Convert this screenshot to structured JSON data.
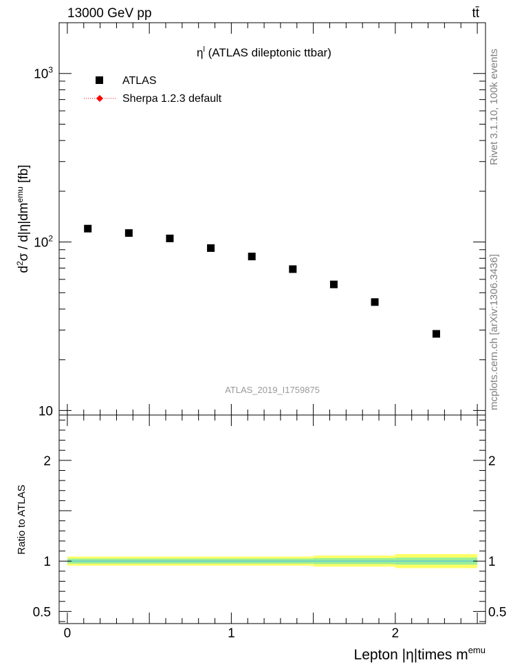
{
  "header": {
    "energy_label": "13000 GeV pp",
    "process_label": "tt̄"
  },
  "side_labels": {
    "rivet": "Rivet 3.1.10, 100k events",
    "mcplots": "mcplots.cern.ch [arXiv:1306.3436]"
  },
  "chart_data": [
    {
      "type": "scatter",
      "title_main": "η",
      "title_sup": "l",
      "title_rest": " (ATLAS dileptonic ttbar)",
      "watermark": "ATLAS_2019_I1759875",
      "ylabel": {
        "pre": "d",
        "sup1": "2",
        "mid": "σ / d|η|dm",
        "sup2": "emu",
        "post": " [fb]"
      },
      "yscale": "log",
      "ylim": [
        9.4,
        2000
      ],
      "xlim": [
        -0.05,
        2.55
      ],
      "y_ticks": [
        {
          "value": 10,
          "label": "10",
          "sup": ""
        },
        {
          "value": 100,
          "label": "10",
          "sup": "2"
        },
        {
          "value": 1000,
          "label": "10",
          "sup": "3"
        }
      ],
      "legend": [
        {
          "name": "ATLAS",
          "marker": "square",
          "color": "#000000"
        },
        {
          "name": "Sherpa 1.2.3 default",
          "marker": "diamond",
          "color": "#ff0000"
        }
      ],
      "series": [
        {
          "name": "ATLAS",
          "x": [
            0.125,
            0.375,
            0.625,
            0.875,
            1.125,
            1.375,
            1.625,
            1.875,
            2.25
          ],
          "y": [
            120,
            113,
            105,
            92,
            82,
            69,
            56,
            44,
            28.5
          ]
        }
      ]
    },
    {
      "type": "line",
      "ylabel": "Ratio to ATLAS",
      "xlabel": {
        "pre": "Lepton |η|times m",
        "sup": "emu"
      },
      "xlim": [
        -0.05,
        2.55
      ],
      "ylim": [
        0.38,
        2.45
      ],
      "x_ticks": [
        {
          "value": 0,
          "label": "0"
        },
        {
          "value": 1,
          "label": "1"
        },
        {
          "value": 2,
          "label": "2"
        }
      ],
      "y_ticks": [
        {
          "value": 0.5,
          "label": "0.5"
        },
        {
          "value": 1,
          "label": "1"
        },
        {
          "value": 2,
          "label": "2"
        }
      ],
      "bands": [
        {
          "name": "total uncertainty",
          "color": "#ffff66",
          "bins": [
            {
              "x0": 0,
              "x1": 1.5,
              "lo": 0.955,
              "hi": 1.045
            },
            {
              "x0": 1.5,
              "x1": 2.0,
              "lo": 0.945,
              "hi": 1.055
            },
            {
              "x0": 2.0,
              "x1": 2.5,
              "lo": 0.93,
              "hi": 1.07
            }
          ]
        },
        {
          "name": "statistical uncertainty",
          "color": "#99ee99",
          "bins": [
            {
              "x0": 0,
              "x1": 1.5,
              "lo": 0.975,
              "hi": 1.025
            },
            {
              "x0": 1.5,
              "x1": 2.0,
              "lo": 0.97,
              "hi": 1.03
            },
            {
              "x0": 2.0,
              "x1": 2.5,
              "lo": 0.965,
              "hi": 1.035
            }
          ]
        }
      ],
      "reference_line": {
        "value": 1,
        "color": "#66cccc"
      }
    }
  ]
}
